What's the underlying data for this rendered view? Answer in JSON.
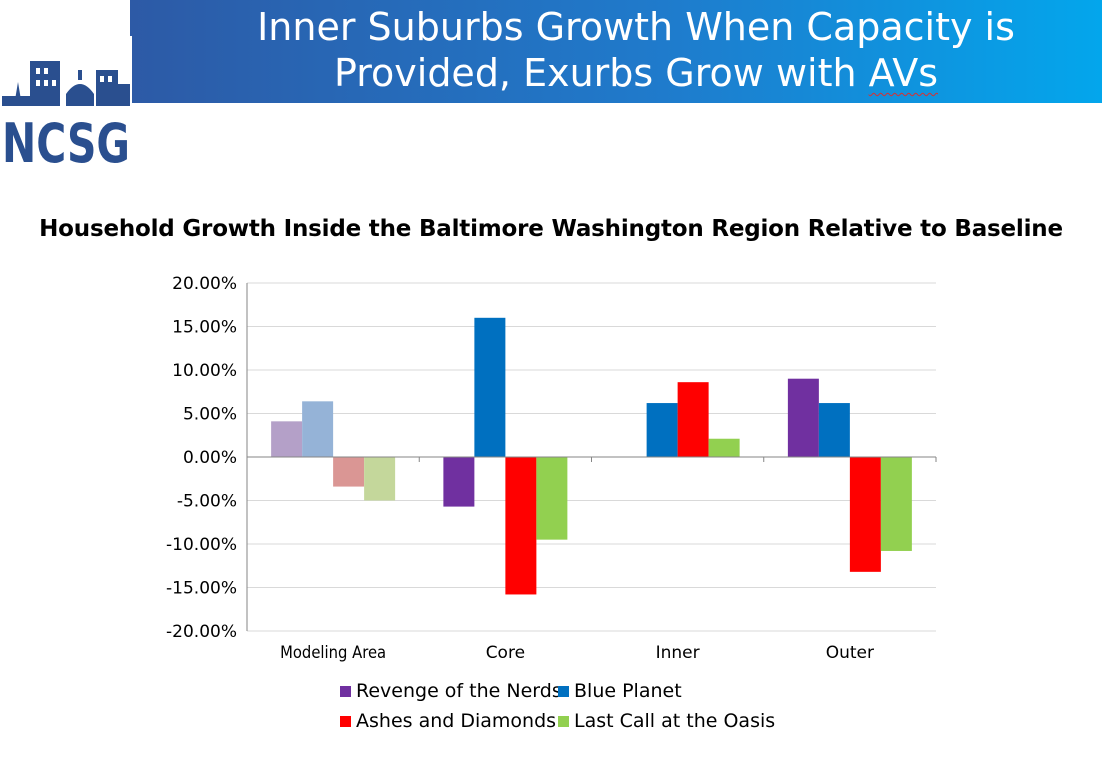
{
  "slide": {
    "title_line1": "Inner Suburbs Growth When Capacity is",
    "title_line2_main": "Provided, Exurbs Grow with ",
    "title_line2_flagged": "AVs",
    "logo_text": "NCSG"
  },
  "colors": {
    "banner_start": "#2d5aa6",
    "banner_end": "#03a6ec",
    "logo_navy": "#2a4f8f"
  },
  "chart_data": {
    "type": "bar",
    "title": "Household Growth Inside the Baltimore Washington Region Relative to Baseline",
    "xlabel": "",
    "ylabel": "",
    "categories": [
      "Modeling Area",
      "Core",
      "Inner",
      "Outer"
    ],
    "ylim": [
      -0.2,
      0.2
    ],
    "yticks": [
      0.2,
      0.15,
      0.1,
      0.05,
      0.0,
      -0.05,
      -0.1,
      -0.15,
      -0.2
    ],
    "ytick_labels": [
      "20.00%",
      "15.00%",
      "10.00%",
      "5.00%",
      "0.00%",
      "-5.00%",
      "-10.00%",
      "-15.00%",
      "-20.00%"
    ],
    "grid": true,
    "legend_position": "bottom",
    "faded_category": "Modeling Area",
    "series": [
      {
        "name": "Revenge of the Nerds",
        "color": "#7030a0",
        "faded_color": "#b4a0c8",
        "values": [
          0.041,
          -0.057,
          0.0,
          0.09
        ]
      },
      {
        "name": "Blue Planet",
        "color": "#0070c0",
        "faded_color": "#95b3d7",
        "values": [
          0.064,
          0.16,
          0.062,
          0.062
        ]
      },
      {
        "name": "Ashes and Diamonds",
        "color": "#ff0000",
        "faded_color": "#da9694",
        "values": [
          -0.034,
          -0.158,
          0.086,
          -0.132
        ]
      },
      {
        "name": "Last Call at the Oasis",
        "color": "#92d050",
        "faded_color": "#c4d79b",
        "values": [
          -0.05,
          -0.095,
          0.021,
          -0.108
        ]
      }
    ]
  }
}
